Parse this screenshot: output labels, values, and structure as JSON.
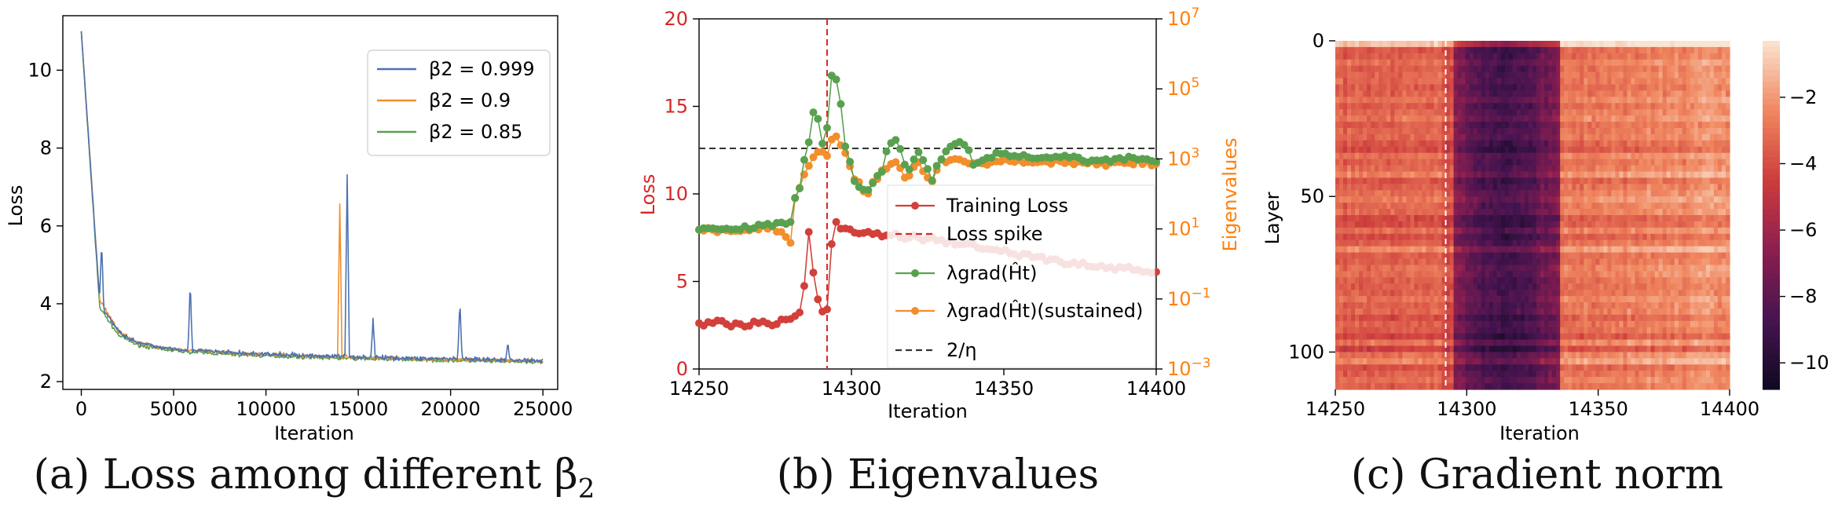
{
  "colors": {
    "blue": "#4c72b0",
    "orange": "#f28e2b",
    "green": "#59a14f",
    "red": "#d1403b",
    "redAxis": "#d62728",
    "orangeAxis": "#ff7f0e",
    "dark": "#333333"
  },
  "captions": {
    "a": "(a) Loss among different β",
    "a_sub": "2",
    "b": "(b) Eigenvalues",
    "c": "(c) Gradient norm"
  },
  "chart_data": [
    {
      "type": "line",
      "xlabel": "Iteration",
      "ylabel": "Loss",
      "xlim": [
        -1000,
        25800
      ],
      "ylim": [
        1.8,
        11.4
      ],
      "xticks": [
        0,
        5000,
        10000,
        15000,
        20000,
        25000
      ],
      "yticks": [
        2,
        4,
        6,
        8,
        10
      ],
      "legend_position": "top-right",
      "series": [
        {
          "name": "β2 = 0.999",
          "color": "blue",
          "x": [
            0,
            1000,
            2000,
            3000,
            4000,
            5000,
            6000,
            8000,
            10000,
            12000,
            14000,
            16000,
            18000,
            20000,
            22000,
            24000,
            25000
          ],
          "y": [
            11.0,
            4.0,
            3.3,
            3.0,
            2.9,
            2.85,
            2.8,
            2.75,
            2.7,
            2.67,
            2.65,
            2.62,
            2.6,
            2.58,
            2.56,
            2.55,
            2.54
          ]
        },
        {
          "name": "β2 = 0.9",
          "color": "orange",
          "x": [
            0,
            1000,
            2000,
            3000,
            4000,
            5000,
            6000,
            8000,
            10000,
            12000,
            14000,
            16000,
            18000,
            20000,
            22000,
            24000,
            25000
          ],
          "y": [
            11.0,
            4.1,
            3.3,
            3.0,
            2.9,
            2.84,
            2.8,
            2.74,
            2.7,
            2.66,
            2.64,
            2.61,
            2.59,
            2.57,
            2.55,
            2.54,
            2.53
          ]
        },
        {
          "name": "β2 = 0.85",
          "color": "green",
          "x": [
            0,
            1000,
            2000,
            3000,
            4000,
            5000,
            6000,
            8000,
            10000,
            12000,
            14000,
            16000,
            18000,
            20000,
            22000,
            24000,
            25000
          ],
          "y": [
            11.0,
            3.9,
            3.2,
            2.95,
            2.85,
            2.8,
            2.76,
            2.7,
            2.66,
            2.63,
            2.6,
            2.58,
            2.56,
            2.54,
            2.52,
            2.51,
            2.5
          ]
        }
      ],
      "spikes": [
        {
          "x": 1100,
          "y": 5.6,
          "series": "blue"
        },
        {
          "x": 5900,
          "y": 4.5,
          "series": "blue"
        },
        {
          "x": 14000,
          "y": 6.6,
          "series": "orange"
        },
        {
          "x": 14400,
          "y": 7.35,
          "series": "blue"
        },
        {
          "x": 15800,
          "y": 3.6,
          "series": "blue"
        },
        {
          "x": 20500,
          "y": 4.05,
          "series": "blue"
        },
        {
          "x": 23100,
          "y": 2.95,
          "series": "blue"
        }
      ]
    },
    {
      "type": "line",
      "xlabel": "Iteration",
      "ylabel": "Loss",
      "y2label": "Eigenvalues",
      "y2scale": "log",
      "xlim": [
        14250,
        14400
      ],
      "ylim": [
        0,
        20
      ],
      "y2lim": [
        0.001,
        10000000
      ],
      "xticks": [
        14250,
        14300,
        14350,
        14400
      ],
      "yticks": [
        0,
        5,
        10,
        15,
        20
      ],
      "y2ticks": [
        "10^-3",
        "10^-1",
        "10^1",
        "10^3",
        "10^5",
        "10^7"
      ],
      "legend_position": "center-right",
      "spike_iteration": 14292,
      "threshold_2_over_eta": 2000,
      "series": [
        {
          "name": "Training Loss",
          "color": "red",
          "x": [
            14250,
            14255,
            14260,
            14265,
            14270,
            14275,
            14280,
            14284,
            14286,
            14288,
            14290,
            14292,
            14294,
            14296,
            14300,
            14310,
            14320,
            14330,
            14340,
            14350,
            14360,
            14370,
            14380,
            14390,
            14400
          ],
          "y": [
            2.6,
            2.7,
            2.5,
            2.6,
            2.7,
            2.6,
            2.8,
            3.5,
            7.9,
            4.6,
            3.2,
            3.4,
            8.4,
            8.2,
            7.9,
            7.7,
            7.5,
            7.3,
            7.0,
            6.7,
            6.4,
            6.1,
            5.9,
            5.7,
            5.5
          ]
        },
        {
          "name": "λgrad(Ĥt)",
          "color": "green",
          "x": [
            14250,
            14260,
            14270,
            14276,
            14280,
            14284,
            14286,
            14288,
            14290,
            14292,
            14294,
            14296,
            14298,
            14300,
            14305,
            14310,
            14314,
            14318,
            14322,
            14326,
            14330,
            14336,
            14340,
            14350,
            14360,
            14370,
            14380,
            14390,
            14400
          ],
          "y": [
            10,
            10,
            12,
            14,
            16,
            200,
            3000,
            30000,
            500,
            9000,
            300000,
            50000,
            2000,
            300,
            80,
            400,
            4000,
            200,
            1500,
            150,
            1200,
            3500,
            700,
            1500,
            1000,
            1100,
            900,
            1000,
            900
          ]
        },
        {
          "name": "λgrad(Ĥt)(sustained)",
          "color": "orange",
          "x": [
            14250,
            14260,
            14270,
            14276,
            14280,
            14284,
            14286,
            14288,
            14290,
            14292,
            14294,
            14296,
            14298,
            14300,
            14305,
            14310,
            14314,
            14318,
            14322,
            14326,
            14330,
            14336,
            14340,
            14350,
            14360,
            14370,
            14380,
            14390,
            14400
          ],
          "y": [
            10,
            9,
            10,
            10,
            4,
            200,
            600,
            1200,
            1500,
            1200,
            5000,
            3000,
            1500,
            300,
            80,
            400,
            900,
            200,
            700,
            150,
            900,
            1000,
            700,
            900,
            800,
            850,
            700,
            800,
            700
          ]
        },
        {
          "name": "Loss spike",
          "color": "redAxis"
        },
        {
          "name": "2/η",
          "color": "dark"
        }
      ]
    },
    {
      "type": "heatmap",
      "xlabel": "Iteration",
      "ylabel": "Layer",
      "xlim": [
        14250,
        14400
      ],
      "ylim": [
        0,
        112
      ],
      "xticks": [
        14250,
        14300,
        14350,
        14400
      ],
      "yticks": [
        0,
        50,
        100
      ],
      "colorbar_ticks": [
        -2,
        -4,
        -6,
        -8,
        -10
      ],
      "colorbar_range": [
        -10.8,
        -0.3
      ],
      "spike_iteration": 14292
    }
  ]
}
